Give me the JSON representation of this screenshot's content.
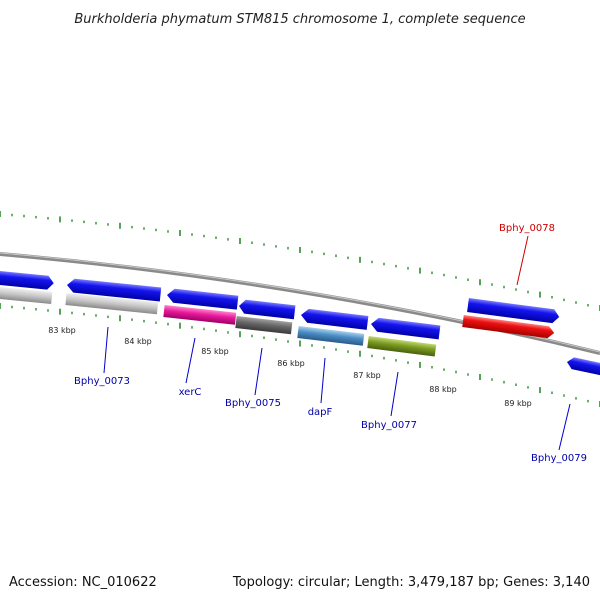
{
  "title": "Burkholderia phymatum STM815 chromosome 1, complete sequence",
  "footer": {
    "accession": "Accession: NC_010622",
    "topology": "Topology: circular; Length: 3,479,187 bp; Genes: 3,140"
  },
  "ticks": [
    "83 kbp",
    "84 kbp",
    "85 kbp",
    "86 kbp",
    "87 kbp",
    "88 kbp",
    "89 kbp"
  ],
  "labels": {
    "bphy_0073": "Bphy_0073",
    "xerc": "xerC",
    "bphy_0075": "Bphy_0075",
    "dapf": "dapF",
    "bphy_0077": "Bphy_0077",
    "bphy_0078": "Bphy_0078",
    "bphy_0079": "Bphy_0079"
  },
  "colors": {
    "cds": "#1010e0",
    "highlight": "#ee1111",
    "label_blue": "#0000aa",
    "label_red": "#cc0000",
    "tick_green": "#2e8b2e",
    "gray_feature": "#bdbdbd",
    "pink_feature": "#e8189a",
    "dark_gray_feature": "#666666",
    "steel_blue_feature": "#4a8cc4",
    "olive_feature": "#7a9a20"
  }
}
